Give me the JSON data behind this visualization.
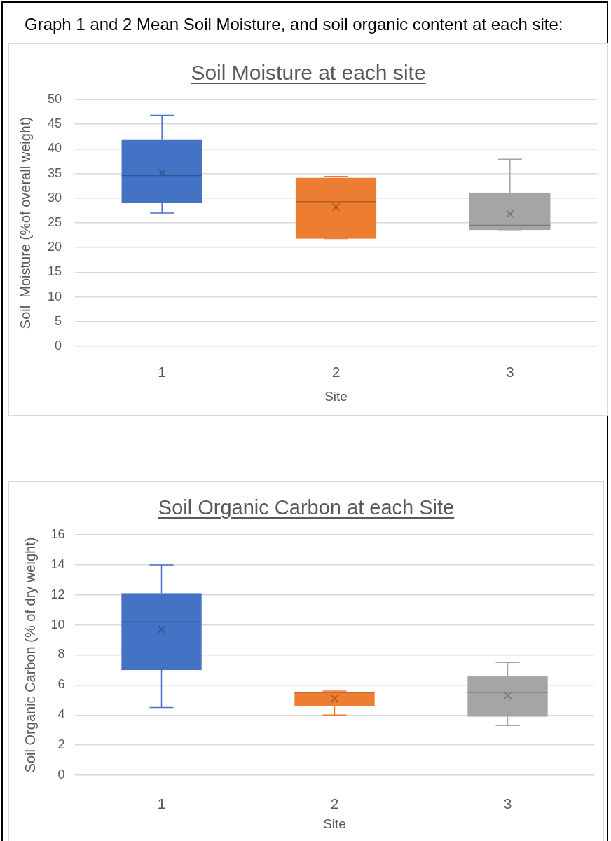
{
  "chart_data": [
    {
      "type": "box",
      "title": "Soil Moisture at each site",
      "xlabel": "Site",
      "ylabel": "Soil  Moisture (%of overall weight)",
      "annotations": [
        "Graph 1 and 2 Mean Soil Moisture, and soil organic content at each site:"
      ],
      "categories": [
        "1",
        "2",
        "3"
      ],
      "colors": [
        "#4472c4",
        "#ed7d31",
        "#a5a5a5"
      ],
      "boxes": [
        {
          "low": 27.0,
          "q1": 29.1,
          "median": 34.6,
          "q3": 41.8,
          "high": 46.8,
          "mean": 35.2
        },
        {
          "low": 21.8,
          "q1": 21.8,
          "median": 29.3,
          "q3": 34.1,
          "high": 34.4,
          "mean": 28.2
        },
        {
          "low": 23.6,
          "q1": 23.6,
          "median": 24.5,
          "q3": 31.1,
          "high": 37.9,
          "mean": 26.8
        }
      ],
      "ylim": [
        0,
        50
      ],
      "yticks": [
        0,
        5,
        10,
        15,
        20,
        25,
        30,
        35,
        40,
        45,
        50
      ],
      "grid": "y"
    },
    {
      "type": "box",
      "title": "Soil Organic Carbon at each Site",
      "xlabel": "Site",
      "ylabel": "Soil Organic Carbon (% of dry weight)",
      "categories": [
        "1",
        "2",
        "3"
      ],
      "colors": [
        "#4472c4",
        "#ed7d31",
        "#a5a5a5"
      ],
      "boxes": [
        {
          "low": 4.5,
          "q1": 7.0,
          "median": 10.2,
          "q3": 12.1,
          "high": 14.0,
          "mean": 9.7
        },
        {
          "low": 4.0,
          "q1": 4.6,
          "median": 5.5,
          "q3": 5.5,
          "high": 5.6,
          "mean": 5.1
        },
        {
          "low": 3.3,
          "q1": 3.9,
          "median": 5.5,
          "q3": 6.6,
          "high": 7.5,
          "mean": 5.3
        }
      ],
      "ylim": [
        0,
        16
      ],
      "yticks": [
        0,
        2,
        4,
        6,
        8,
        10,
        12,
        14,
        16
      ],
      "grid": "y"
    }
  ]
}
